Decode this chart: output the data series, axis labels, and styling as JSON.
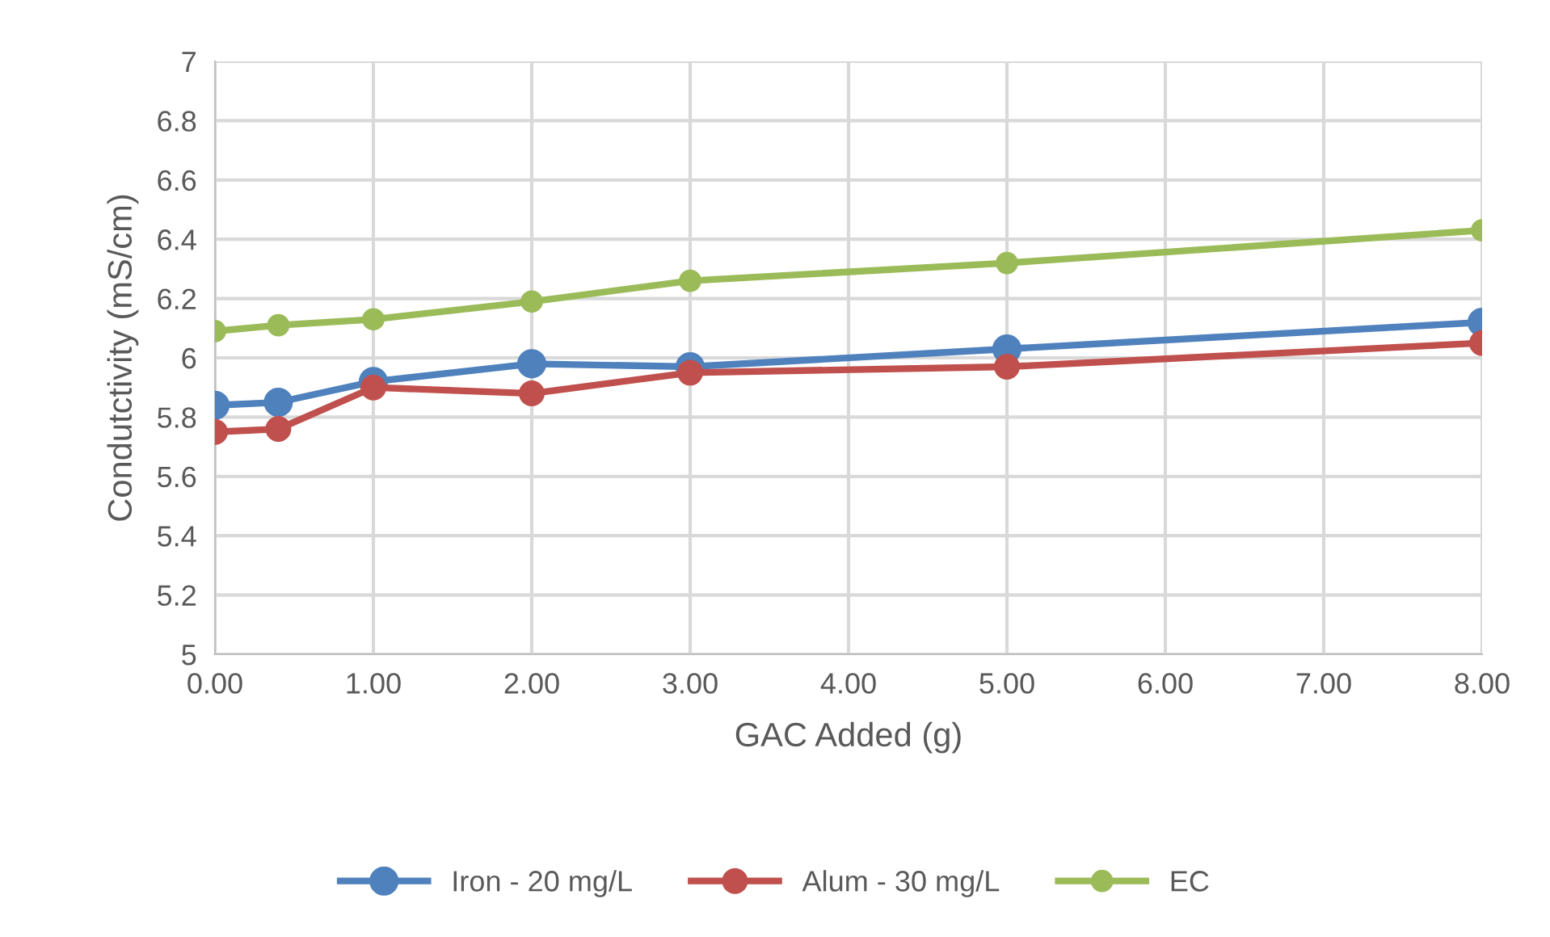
{
  "chart_data": {
    "type": "line",
    "xlabel": "GAC Added (g)",
    "ylabel": "Condutctivity (mS/cm)",
    "x": [
      0,
      0.4,
      1,
      2,
      3,
      5,
      8
    ],
    "series": [
      {
        "name": "Iron - 20 mg/L",
        "color": "#4f81bd",
        "values": [
          5.84,
          5.85,
          5.92,
          5.98,
          5.97,
          6.03,
          6.12
        ]
      },
      {
        "name": "Alum - 30 mg/L",
        "color": "#c0504d",
        "values": [
          5.75,
          5.76,
          5.9,
          5.88,
          5.95,
          5.97,
          6.05
        ]
      },
      {
        "name": "EC",
        "color": "#9bbb59",
        "values": [
          6.09,
          6.11,
          6.13,
          6.19,
          6.26,
          6.32,
          6.43
        ]
      }
    ],
    "xlim": [
      0,
      8
    ],
    "xticks": [
      {
        "value": 0,
        "label": "0.00"
      },
      {
        "value": 1,
        "label": "1.00"
      },
      {
        "value": 2,
        "label": "2.00"
      },
      {
        "value": 3,
        "label": "3.00"
      },
      {
        "value": 4,
        "label": "4.00"
      },
      {
        "value": 5,
        "label": "5.00"
      },
      {
        "value": 6,
        "label": "6.00"
      },
      {
        "value": 7,
        "label": "7.00"
      },
      {
        "value": 8,
        "label": "8.00"
      }
    ],
    "ylim": [
      5,
      7
    ],
    "yticks": [
      5,
      5.2,
      5.4,
      5.6,
      5.8,
      6,
      6.2,
      6.4,
      6.6,
      6.8,
      7
    ],
    "grid": true,
    "legend": "bottom",
    "marker": "circle",
    "line_style": "solid"
  }
}
